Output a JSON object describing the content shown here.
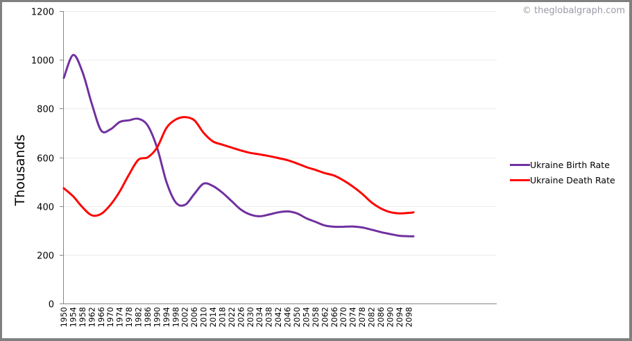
{
  "watermark": "© theglobalgraph.com",
  "chart_data": {
    "type": "line",
    "title": "",
    "xlabel": "",
    "ylabel": "Thousands",
    "ylim": [
      0,
      1200
    ],
    "yticks": [
      0,
      200,
      400,
      600,
      800,
      1000,
      1200
    ],
    "grid": true,
    "legend_position": "right",
    "x": [
      1950,
      1954,
      1958,
      1962,
      1966,
      1970,
      1974,
      1978,
      1982,
      1986,
      1990,
      1994,
      1998,
      2002,
      2006,
      2010,
      2014,
      2018,
      2022,
      2026,
      2030,
      2034,
      2038,
      2042,
      2046,
      2050,
      2054,
      2058,
      2062,
      2066,
      2070,
      2074,
      2078,
      2082,
      2086,
      2090,
      2094,
      2098,
      2100
    ],
    "xtick_labels": [
      "1950",
      "1954",
      "1958",
      "1962",
      "1966",
      "1970",
      "1974",
      "1978",
      "1982",
      "1986",
      "1990",
      "1994",
      "1998",
      "2002",
      "2006",
      "2010",
      "2014",
      "2018",
      "2022",
      "2026",
      "2030",
      "2034",
      "2038",
      "2042",
      "2046",
      "2050",
      "2054",
      "2058",
      "2062",
      "2066",
      "2070",
      "2074",
      "2078",
      "2082",
      "2086",
      "2090",
      "2094",
      "2098"
    ],
    "series": [
      {
        "name": "Ukraine Birth Rate",
        "color": "#7030a0",
        "values": [
          926,
          1020,
          950,
          820,
          710,
          715,
          745,
          752,
          758,
          730,
          640,
          500,
          415,
          405,
          450,
          492,
          482,
          455,
          420,
          385,
          365,
          358,
          365,
          374,
          378,
          370,
          350,
          335,
          320,
          315,
          315,
          316,
          312,
          303,
          293,
          285,
          278,
          276,
          276
        ]
      },
      {
        "name": "Ukraine Death Rate",
        "color": "#ff0000",
        "values": [
          473,
          440,
          395,
          362,
          368,
          405,
          460,
          530,
          590,
          600,
          640,
          720,
          755,
          765,
          752,
          700,
          665,
          652,
          640,
          628,
          618,
          612,
          605,
          597,
          588,
          575,
          560,
          548,
          535,
          525,
          505,
          480,
          450,
          415,
          390,
          375,
          370,
          372,
          374
        ]
      }
    ]
  },
  "legend": {
    "items": [
      {
        "label": "Ukraine Birth Rate",
        "color": "#7030a0"
      },
      {
        "label": "Ukraine Death Rate",
        "color": "#ff0000"
      }
    ]
  }
}
